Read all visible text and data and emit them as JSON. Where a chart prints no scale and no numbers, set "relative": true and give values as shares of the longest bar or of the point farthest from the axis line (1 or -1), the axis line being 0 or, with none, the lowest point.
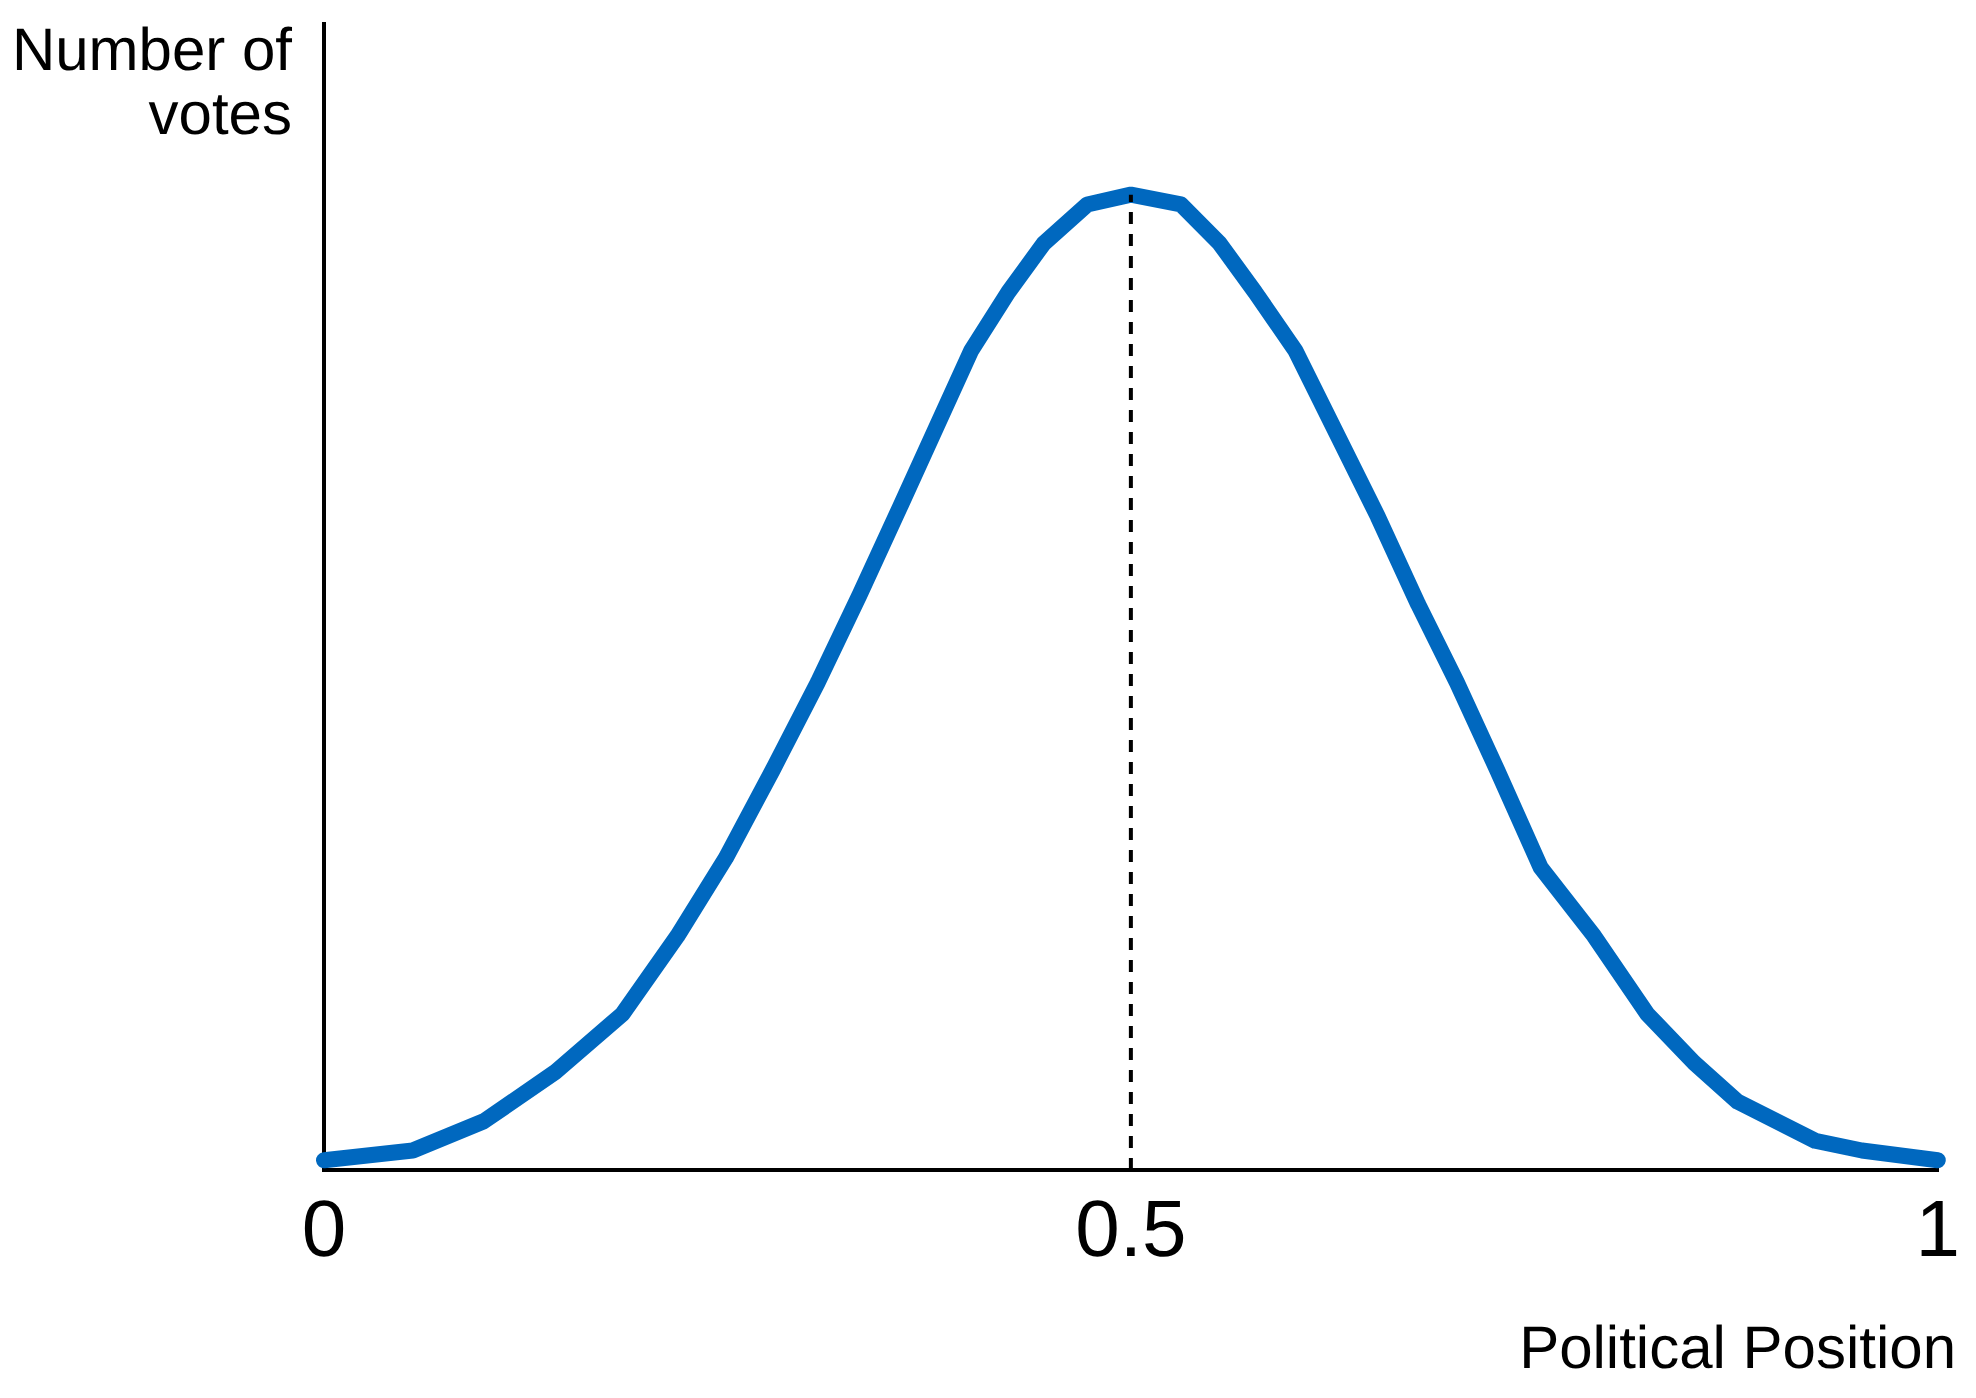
{
  "chart_data": {
    "type": "line",
    "xlabel": "Political Position",
    "ylabel": "Number of votes",
    "relative": true,
    "xlim": [
      0,
      1
    ],
    "xticks": [
      0,
      0.5,
      1
    ],
    "tick_labels": "x",
    "grid": false,
    "legend": false,
    "marker": "none",
    "line_style": "solid",
    "x": [
      0,
      0.055,
      0.099,
      0.143,
      0.185,
      0.219,
      0.249,
      0.278,
      0.306,
      0.332,
      0.357,
      0.379,
      0.401,
      0.424,
      0.446,
      0.473,
      0.5,
      0.531,
      0.555,
      0.577,
      0.602,
      0.629,
      0.653,
      0.678,
      0.702,
      0.727,
      0.754,
      0.787,
      0.82,
      0.849,
      0.876,
      0.924,
      0.953,
      1
    ],
    "series": [
      {
        "color": "#0068bf",
        "values": [
          0.01,
          0.02,
          0.05,
          0.1,
          0.16,
          0.24,
          0.32,
          0.41,
          0.5,
          0.59,
          0.68,
          0.76,
          0.84,
          0.9,
          0.95,
          0.99,
          1,
          0.99,
          0.95,
          0.9,
          0.84,
          0.75,
          0.67,
          0.58,
          0.5,
          0.41,
          0.31,
          0.24,
          0.16,
          0.11,
          0.07,
          0.03,
          0.02,
          0.01
        ]
      }
    ],
    "ref_lines": [
      {
        "axis": "x",
        "value": 0.5,
        "color": "#000000",
        "line_style": "dashed"
      }
    ]
  }
}
